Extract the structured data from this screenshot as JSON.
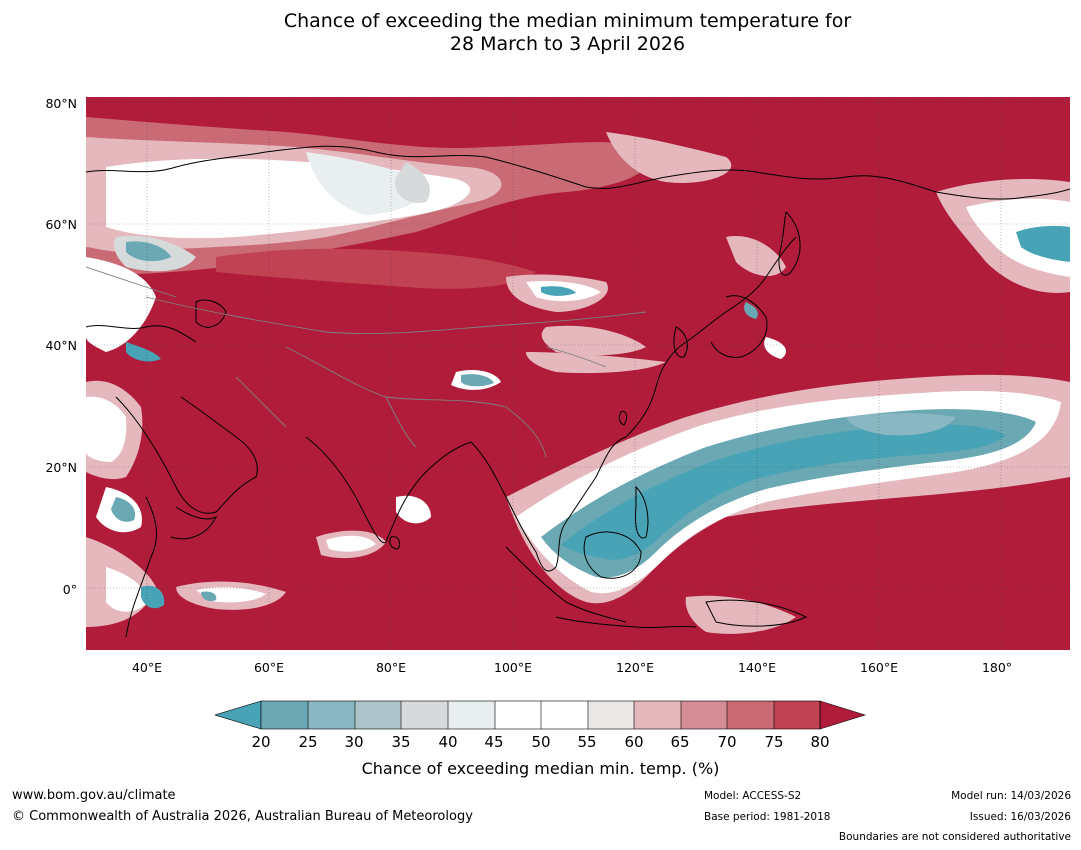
{
  "title": {
    "line1": "Chance of exceeding the median minimum temperature for",
    "line2": "28 March to 3 April 2026"
  },
  "map": {
    "lat_labels": [
      "80°N",
      "60°N",
      "40°N",
      "20°N",
      "0°"
    ],
    "lon_labels": [
      "40°E",
      "60°E",
      "80°E",
      "100°E",
      "120°E",
      "140°E",
      "160°E",
      "180°"
    ],
    "colors": {
      "warm_dark": "#b01c3a",
      "warm_75": "#c14252",
      "warm_70": "#ca6a74",
      "warm_65": "#d68d96",
      "warm_60": "#e4b8bd",
      "neutral_55": "#ece8e8",
      "neutral": "#ffffff",
      "cool_45": "#e9eef0",
      "cool_40": "#d6dadb",
      "cool_35": "#adc4ca",
      "cool_30": "#8ab8c2",
      "cool_25": "#6aa8b4",
      "cool_dark": "#47a3b5",
      "coastline": "#000000",
      "boundary": "#808080"
    }
  },
  "colorbar": {
    "ticks": [
      "20",
      "25",
      "30",
      "35",
      "40",
      "45",
      "50",
      "55",
      "60",
      "65",
      "70",
      "75",
      "80"
    ],
    "label": "Chance of exceeding median min. temp. (%)"
  },
  "footer": {
    "url": "www.bom.gov.au/climate",
    "copyright": "© Commonwealth of Australia 2026, Australian Bureau of Meteorology",
    "model": "Model: ACCESS-S2",
    "base_period": "Base period: 1981-2018",
    "model_run": "Model run: 14/03/2026",
    "issued": "Issued: 16/03/2026",
    "disclaimer": "Boundaries are not considered authoritative"
  }
}
